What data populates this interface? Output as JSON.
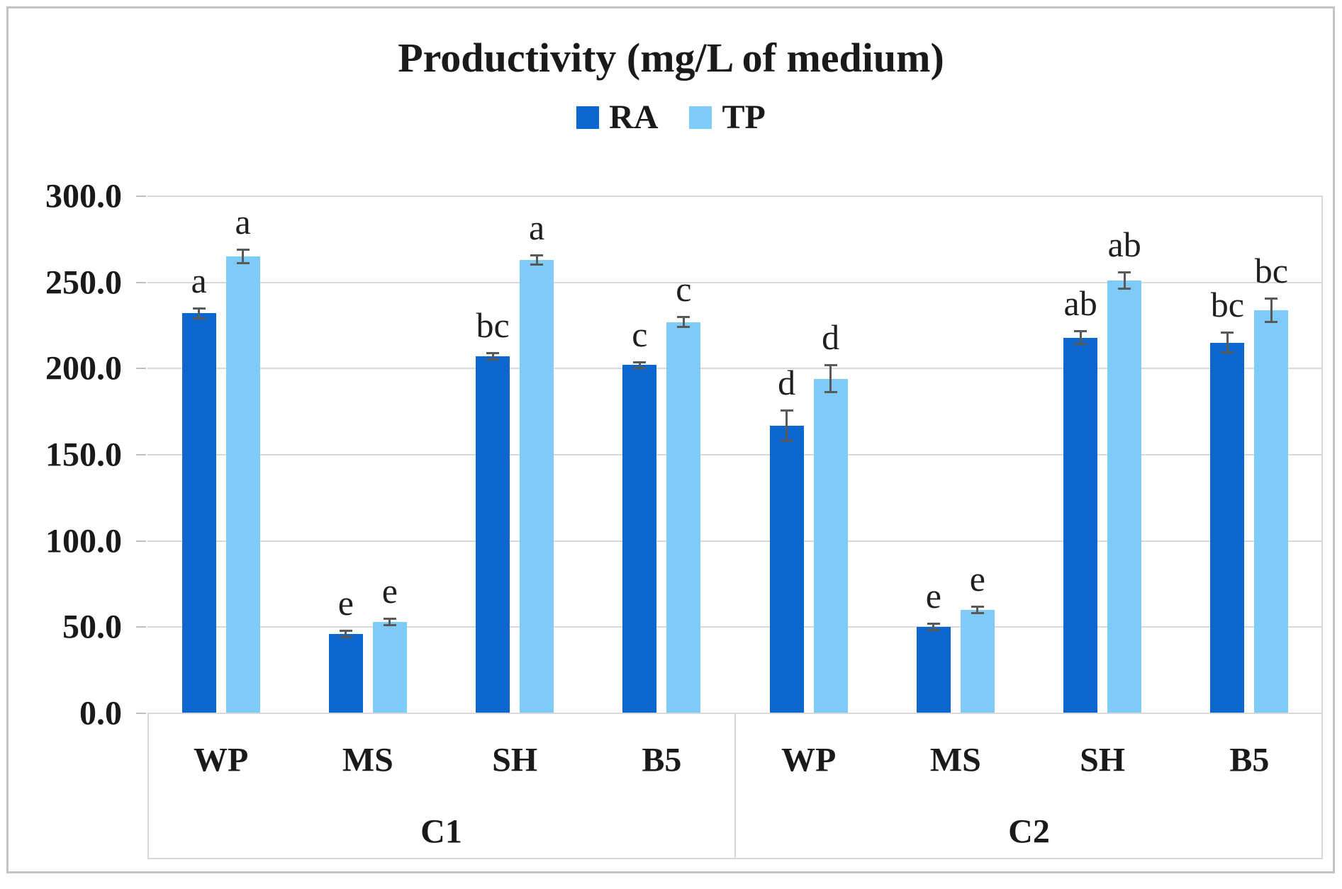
{
  "figure": {
    "background": "#FFFFFF",
    "frame_color": "#C4C4C4"
  },
  "chart_data": {
    "type": "bar",
    "title": "Productivity (mg/L of medium)",
    "xlabel": "",
    "ylabel": "",
    "y_axis": {
      "min": 0,
      "max": 300,
      "step": 50,
      "tick_labels": [
        "300.0",
        "250.0",
        "200.0",
        "150.0",
        "100.0",
        "50.0",
        "0.0"
      ]
    },
    "grid": true,
    "gridline_color": "#D9D9D9",
    "error_bar_color": "#595959",
    "legend": {
      "position": "top",
      "entries": [
        {
          "label": "RA",
          "color": "#0B67CD"
        },
        {
          "label": "TP",
          "color": "#7FCBF8"
        }
      ]
    },
    "groups": [
      {
        "label": "C1",
        "categories": [
          "WP",
          "MS",
          "SH",
          "B5"
        ]
      },
      {
        "label": "C2",
        "categories": [
          "WP",
          "MS",
          "SH",
          "B5"
        ]
      }
    ],
    "categories_flat": [
      "WP",
      "MS",
      "SH",
      "B5",
      "WP",
      "MS",
      "SH",
      "B5"
    ],
    "series": [
      {
        "name": "RA",
        "color": "#0B67CD",
        "values": [
          232,
          46,
          207,
          202,
          167,
          50,
          218,
          215
        ],
        "errors": [
          3,
          2,
          2,
          2,
          9,
          2,
          4,
          6
        ],
        "sig_letters": [
          "a",
          "e",
          "bc",
          "c",
          "d",
          "e",
          "ab",
          "bc"
        ]
      },
      {
        "name": "TP",
        "color": "#7FCBF8",
        "values": [
          265,
          53,
          263,
          227,
          194,
          60,
          251,
          234
        ],
        "errors": [
          4,
          2,
          3,
          3,
          8,
          2,
          5,
          7
        ],
        "sig_letters": [
          "a",
          "e",
          "a",
          "c",
          "d",
          "e",
          "ab",
          "bc"
        ]
      }
    ]
  }
}
